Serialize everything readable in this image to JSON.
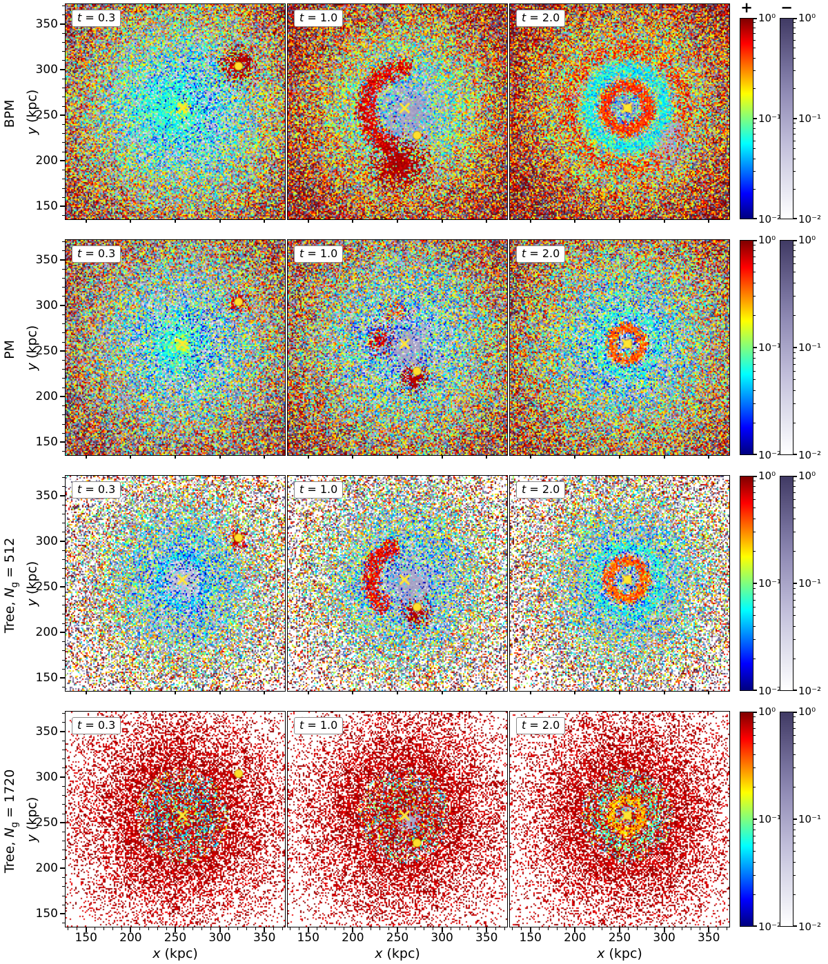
{
  "figure": {
    "rows": [
      {
        "label": {
          "pre": "BPM",
          "var": "",
          "sub": "",
          "post": ""
        }
      },
      {
        "label": {
          "pre": "PM",
          "var": "",
          "sub": "",
          "post": ""
        }
      },
      {
        "label": {
          "pre": "Tree, ",
          "var": "N",
          "sub": "g",
          "post": " = 512"
        }
      },
      {
        "label": {
          "pre": "Tree, ",
          "var": "N",
          "sub": "g",
          "post": " = 1720"
        }
      }
    ],
    "times": [
      {
        "var": "t",
        "post": " = 0.3"
      },
      {
        "var": "t",
        "post": " = 1.0"
      },
      {
        "var": "t",
        "post": " = 2.0"
      }
    ],
    "xlabel": {
      "var": "x",
      "post": " (kpc)"
    },
    "ylabel": {
      "var": "y",
      "post": " (kpc)"
    },
    "x_tick_labels": [
      "150",
      "200",
      "250",
      "300",
      "350"
    ],
    "y_tick_labels": [
      "350",
      "300",
      "250",
      "200",
      "150"
    ],
    "colorbars": {
      "pos": {
        "sign": "+",
        "ticks": [
          "10⁰",
          "10⁻¹",
          "10⁻²"
        ]
      },
      "neg": {
        "sign": "−",
        "ticks": [
          "10⁰",
          "10⁻¹",
          "10⁻²"
        ]
      }
    }
  },
  "chart_data": {
    "type": "heatmap",
    "grid": {
      "rows": 4,
      "cols": 3
    },
    "row_methods": [
      "BPM",
      "PM",
      "Tree, Ng = 512",
      "Tree, Ng = 1720"
    ],
    "col_times": [
      0.3,
      1.0,
      2.0
    ],
    "xlabel": "x (kpc)",
    "ylabel": "y (kpc)",
    "xlim": [
      127,
      373
    ],
    "ylim": [
      136,
      372
    ],
    "x_ticks": [
      150,
      200,
      250,
      300,
      350
    ],
    "y_ticks": [
      150,
      200,
      250,
      300,
      350
    ],
    "color_scale": {
      "type": "log",
      "min": 0.01,
      "max": 1,
      "tick_values": [
        1,
        0.1,
        0.01
      ],
      "positive_sign_label": "+",
      "negative_sign_label": "−",
      "positive_colormap": "jet: dark blue -> cyan -> green -> yellow -> red -> dark red",
      "negative_colormap": "white -> lavender -> dark purple"
    },
    "markers": {
      "cross": [
        258,
        258
      ],
      "dot_by_column": [
        [
          321,
          304
        ],
        [
          272,
          228
        ],
        [
          259,
          258
        ]
      ]
    },
    "row_notes": [
      "BPM: dense multicolor speckle; t=0.3 green/cyan core with dark-red clump at satellite; t=1.0 purple core with red crescent and dark-red lobe below; t=2.0 purple core, orange ring, cyan ring, purple arm lower right",
      "PM: blue/red speckle; same evolving core structures but more compact",
      "Tree Ng=512: like PM but sparse white corners; smooth lavender core at t=0.3",
      "Tree Ng=1720: white background with dense dark-red point speckle in a disk; small purple core with orange ring at later times"
    ]
  }
}
